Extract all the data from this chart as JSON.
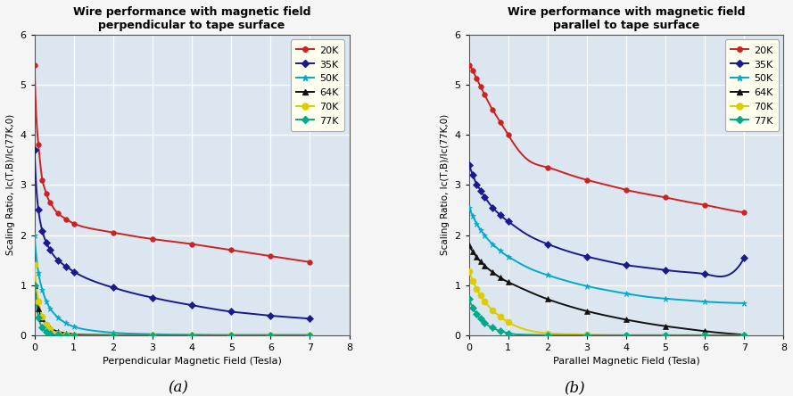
{
  "title_a": "Wire performance with magnetic field\nperpendicular to tape surface",
  "title_b": "Wire performance with magnetic field\nparallel to tape surface",
  "xlabel_a": "Perpendicular Magnetic Field (Tesla)",
  "xlabel_b": "Parallel Magnetic Field (Tesla)",
  "ylabel": "Scaling Ratio, Ic(T,B)/Ic(77K,0)",
  "label_a": "(a)",
  "label_b": "(b)",
  "xlim": [
    0,
    8
  ],
  "ylim": [
    0,
    6
  ],
  "xticks": [
    0,
    1,
    2,
    3,
    4,
    5,
    6,
    7,
    8
  ],
  "yticks": [
    0,
    1,
    2,
    3,
    4,
    5,
    6
  ],
  "plot_bg": "#dce6f0",
  "fig_bg": "#f5f5f5",
  "legend_bg": "#fffff0",
  "series": [
    {
      "label": "20K",
      "color": "#cc2222",
      "marker": "o",
      "markersize": 4
    },
    {
      "label": "35K",
      "color": "#1a1a8c",
      "marker": "D",
      "markersize": 4
    },
    {
      "label": "50K",
      "color": "#00aacc",
      "marker": "*",
      "markersize": 5
    },
    {
      "label": "64K",
      "color": "#111111",
      "marker": "^",
      "markersize": 4
    },
    {
      "label": "70K",
      "color": "#ddcc00",
      "marker": "o",
      "markersize": 5
    },
    {
      "label": "77K",
      "color": "#00aa88",
      "marker": "D",
      "markersize": 4
    }
  ],
  "perp_x": [
    0,
    0.05,
    0.1,
    0.15,
    0.2,
    0.25,
    0.3,
    0.35,
    0.4,
    0.5,
    0.6,
    0.7,
    0.8,
    0.9,
    1.0,
    1.5,
    2.0,
    2.5,
    3.0,
    3.5,
    4.0,
    4.5,
    5.0,
    5.5,
    6.0,
    6.5,
    7.0
  ],
  "perp_20K": [
    5.4,
    4.3,
    3.8,
    3.4,
    3.1,
    2.95,
    2.82,
    2.72,
    2.65,
    2.52,
    2.43,
    2.37,
    2.32,
    2.27,
    2.23,
    2.12,
    2.05,
    1.98,
    1.92,
    1.87,
    1.82,
    1.76,
    1.7,
    1.64,
    1.58,
    1.52,
    1.46
  ],
  "perp_35K": [
    3.7,
    2.9,
    2.5,
    2.25,
    2.08,
    1.95,
    1.85,
    1.77,
    1.7,
    1.58,
    1.5,
    1.43,
    1.37,
    1.32,
    1.27,
    1.08,
    0.95,
    0.84,
    0.75,
    0.67,
    0.6,
    0.53,
    0.47,
    0.43,
    0.39,
    0.36,
    0.33
  ],
  "perp_50K": [
    2.0,
    1.55,
    1.25,
    1.05,
    0.9,
    0.78,
    0.68,
    0.6,
    0.53,
    0.43,
    0.35,
    0.29,
    0.24,
    0.2,
    0.17,
    0.09,
    0.05,
    0.03,
    0.02,
    0.01,
    0.01,
    0.0,
    0.0,
    0.0,
    0.0,
    0.0,
    0.0
  ],
  "perp_64K": [
    1.0,
    0.72,
    0.54,
    0.42,
    0.33,
    0.26,
    0.21,
    0.17,
    0.14,
    0.1,
    0.07,
    0.05,
    0.04,
    0.03,
    0.02,
    0.01,
    0.0,
    0.0,
    0.0,
    0.0,
    0.0,
    0.0,
    0.0,
    0.0,
    0.0,
    0.0,
    0.0
  ],
  "perp_70K": [
    1.4,
    0.95,
    0.68,
    0.5,
    0.37,
    0.28,
    0.21,
    0.16,
    0.12,
    0.07,
    0.04,
    0.02,
    0.01,
    0.01,
    0.0,
    0.0,
    0.0,
    0.0,
    0.0,
    0.0,
    0.0,
    0.0,
    0.0,
    0.0,
    0.0,
    0.0,
    0.0
  ],
  "perp_77K": [
    1.0,
    0.58,
    0.36,
    0.23,
    0.15,
    0.1,
    0.07,
    0.04,
    0.03,
    0.01,
    0.01,
    0.0,
    0.0,
    0.0,
    0.0,
    0.0,
    0.0,
    0.0,
    0.0,
    0.0,
    0.0,
    0.0,
    0.0,
    0.0,
    0.0,
    0.0,
    0.0
  ],
  "para_x": [
    0,
    0.05,
    0.1,
    0.15,
    0.2,
    0.25,
    0.3,
    0.35,
    0.4,
    0.5,
    0.6,
    0.7,
    0.8,
    0.9,
    1.0,
    1.5,
    2.0,
    2.5,
    3.0,
    3.5,
    4.0,
    4.5,
    5.0,
    5.5,
    6.0,
    6.5,
    7.0
  ],
  "para_20K": [
    5.4,
    5.35,
    5.28,
    5.2,
    5.12,
    5.04,
    4.96,
    4.88,
    4.8,
    4.65,
    4.5,
    4.38,
    4.25,
    4.13,
    4.0,
    3.5,
    3.35,
    3.22,
    3.1,
    3.0,
    2.9,
    2.82,
    2.75,
    2.67,
    2.6,
    2.52,
    2.45
  ],
  "para_35K": [
    3.4,
    3.3,
    3.2,
    3.1,
    3.0,
    2.95,
    2.88,
    2.82,
    2.76,
    2.65,
    2.55,
    2.47,
    2.4,
    2.33,
    2.27,
    2.0,
    1.82,
    1.68,
    1.57,
    1.48,
    1.4,
    1.35,
    1.3,
    1.26,
    1.22,
    1.18,
    1.55
  ],
  "para_50K": [
    2.55,
    2.46,
    2.38,
    2.3,
    2.22,
    2.16,
    2.1,
    2.05,
    2.0,
    1.9,
    1.82,
    1.75,
    1.68,
    1.62,
    1.57,
    1.35,
    1.2,
    1.08,
    0.98,
    0.9,
    0.83,
    0.77,
    0.73,
    0.7,
    0.67,
    0.65,
    0.64
  ],
  "para_64K": [
    1.8,
    1.73,
    1.67,
    1.61,
    1.56,
    1.51,
    1.47,
    1.43,
    1.39,
    1.32,
    1.26,
    1.2,
    1.15,
    1.1,
    1.06,
    0.88,
    0.72,
    0.59,
    0.48,
    0.39,
    0.31,
    0.24,
    0.18,
    0.13,
    0.08,
    0.04,
    0.01
  ],
  "para_70K": [
    1.28,
    1.18,
    1.09,
    1.0,
    0.92,
    0.85,
    0.79,
    0.73,
    0.67,
    0.58,
    0.5,
    0.43,
    0.37,
    0.31,
    0.26,
    0.1,
    0.04,
    0.02,
    0.01,
    0.0,
    0.0,
    0.0,
    0.0,
    0.0,
    0.0,
    0.0,
    0.0
  ],
  "para_77K": [
    0.72,
    0.63,
    0.55,
    0.48,
    0.42,
    0.37,
    0.33,
    0.29,
    0.25,
    0.19,
    0.15,
    0.11,
    0.08,
    0.06,
    0.04,
    0.01,
    0.0,
    0.0,
    0.0,
    0.0,
    0.0,
    0.0,
    0.0,
    0.0,
    0.0,
    0.0,
    0.0
  ]
}
